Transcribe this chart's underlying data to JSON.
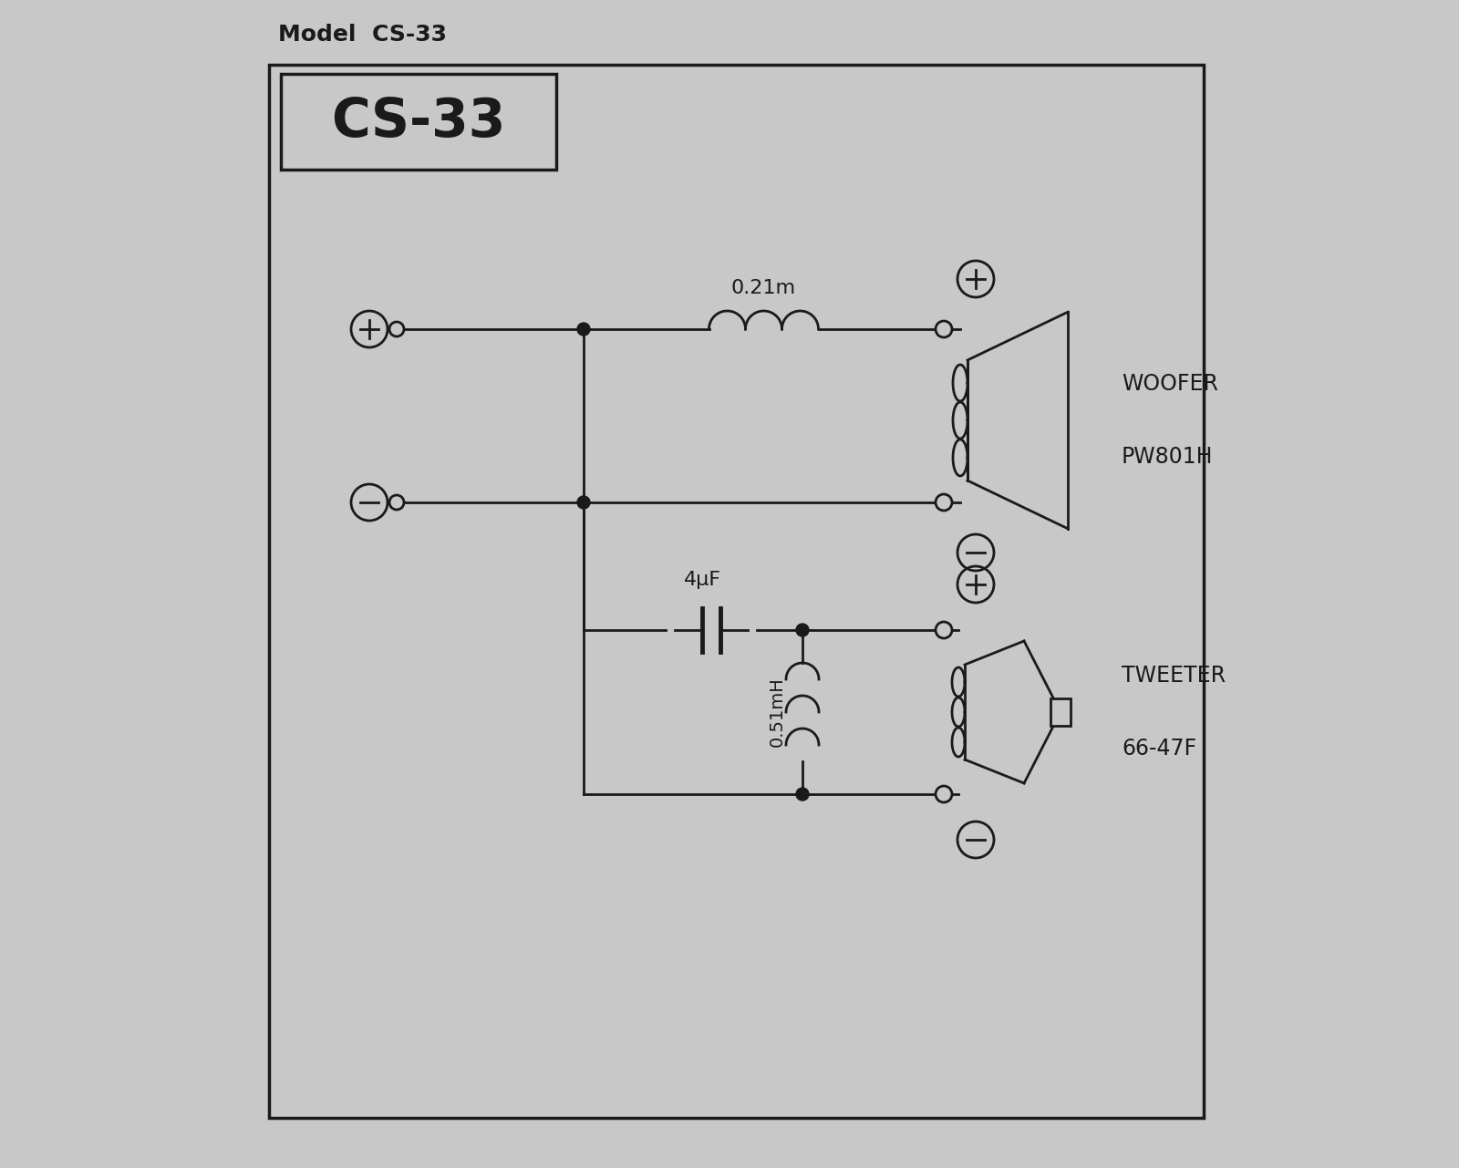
{
  "title": "Model  CS-33",
  "model_label": "CS-33",
  "bg_color": "#c8c8c8",
  "line_color": "#1a1a1a",
  "woofer_line1": "WOOFER",
  "woofer_line2": "PW801H",
  "tweeter_line1": "TWEETER",
  "tweeter_line2": "66-47F",
  "inductor1_label": "0.21m",
  "inductor2_label": "0.51mH",
  "cap_label": "4μF",
  "figsize": [
    16.0,
    12.81
  ],
  "dpi": 100
}
